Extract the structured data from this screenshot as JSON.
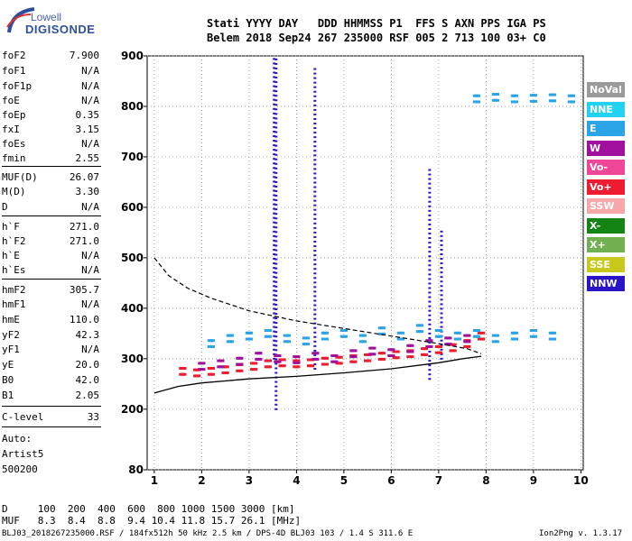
{
  "logo": {
    "top": "Lowell",
    "main": "DIGISONDE"
  },
  "header": {
    "line1": "Stati YYYY DAY   DDD HHMMSS P1  FFS S AXN PPS IGA PS",
    "line2": "Belem 2018 Sep24 267 235000 RSF 005 2 713 100 03+ C0"
  },
  "params": [
    {
      "name": "foF2",
      "value": "7.900"
    },
    {
      "name": "foF1",
      "value": "N/A"
    },
    {
      "name": "foF1p",
      "value": "N/A"
    },
    {
      "name": "foE",
      "value": "N/A"
    },
    {
      "name": "foEp",
      "value": "0.35"
    },
    {
      "name": "fxI",
      "value": "3.15"
    },
    {
      "name": "foEs",
      "value": "N/A"
    },
    {
      "name": "fmin",
      "value": "2.55"
    },
    {
      "name": "MUF(D)",
      "value": "26.07"
    },
    {
      "name": "M(D)",
      "value": "3.30"
    },
    {
      "name": "D",
      "value": "N/A"
    },
    {
      "name": "h`F",
      "value": "271.0"
    },
    {
      "name": "h`F2",
      "value": "271.0"
    },
    {
      "name": "h`E",
      "value": "N/A"
    },
    {
      "name": "h`Es",
      "value": "N/A"
    },
    {
      "name": "hmF2",
      "value": "305.7"
    },
    {
      "name": "hmF1",
      "value": "N/A"
    },
    {
      "name": "hmE",
      "value": "110.0"
    },
    {
      "name": "yF2",
      "value": "42.3"
    },
    {
      "name": "yF1",
      "value": "N/A"
    },
    {
      "name": "yE",
      "value": "20.0"
    },
    {
      "name": "B0",
      "value": "42.0"
    },
    {
      "name": "B1",
      "value": "2.05"
    },
    {
      "name": "C-level",
      "value": "33"
    }
  ],
  "auto": {
    "label": "Auto:",
    "name": "Artist5",
    "version": "500200"
  },
  "legend": [
    {
      "label": "NoVal",
      "color": "#9a9a9a"
    },
    {
      "label": "NNE",
      "color": "#22d2f0"
    },
    {
      "label": "E",
      "color": "#2aa4e6"
    },
    {
      "label": "W",
      "color": "#a0109c"
    },
    {
      "label": "Vo-",
      "color": "#f0469a"
    },
    {
      "label": "Vo+",
      "color": "#ee1c30"
    },
    {
      "label": "SSW",
      "color": "#f6a8a8"
    },
    {
      "label": "X-",
      "color": "#148414"
    },
    {
      "label": "X+",
      "color": "#70b050"
    },
    {
      "label": "SSE",
      "color": "#c8c81c"
    },
    {
      "label": "NNW",
      "color": "#2a14c8"
    }
  ],
  "muf_table": {
    "d_line": "D     100  200  400  600  800 1000 1500 3000 [km]",
    "muf_line": "MUF   8.3  8.4  8.8  9.4 10.4 11.8 15.7 26.1 [MHz]"
  },
  "footer": {
    "left": "BLJ03_2018267235000.RSF / 184fx512h 50 kHz 2.5 km / DPS-4D BLJ03 103 / 1.4 S 311.6 E",
    "right": "Ion2Png v. 1.3.17"
  },
  "chart_data": {
    "type": "scatter",
    "title": "",
    "xlabel": "",
    "ylabel": "",
    "xlim": [
      0.85,
      10.05
    ],
    "ylim": [
      80,
      900
    ],
    "xticks": [
      1,
      2,
      3,
      4,
      5,
      6,
      7,
      8,
      9,
      10
    ],
    "yticks": [
      80,
      200,
      300,
      400,
      500,
      600,
      700,
      800,
      900
    ],
    "grid": true,
    "ionogram_traces": [
      {
        "name": "F2 O-trace (Vo+)",
        "color": "#ee1c30",
        "x": [
          1.6,
          1.9,
          2.2,
          2.5,
          2.8,
          3.1,
          3.4,
          3.7,
          4.0,
          4.3,
          4.6,
          4.9,
          5.2,
          5.5,
          5.8,
          6.1,
          6.4,
          6.7,
          7.0,
          7.3,
          7.6,
          7.9
        ],
        "y": [
          275,
          272,
          275,
          278,
          282,
          285,
          290,
          292,
          290,
          292,
          295,
          297,
          300,
          302,
          305,
          308,
          310,
          314,
          318,
          322,
          330,
          345
        ]
      },
      {
        "name": "F2 W",
        "color": "#a0109c",
        "x": [
          2.0,
          2.4,
          2.8,
          3.2,
          3.6,
          4.0,
          4.4,
          4.8,
          5.2,
          5.6,
          6.0,
          6.4,
          6.8,
          7.2,
          7.6
        ],
        "y": [
          285,
          290,
          295,
          305,
          300,
          298,
          305,
          300,
          310,
          315,
          312,
          320,
          330,
          335,
          340
        ]
      },
      {
        "name": "F2 E",
        "color": "#2aa4e6",
        "x": [
          2.2,
          2.6,
          3.0,
          3.4,
          3.8,
          4.2,
          4.6,
          5.0,
          5.4,
          5.8,
          6.2,
          6.6,
          7.0,
          7.4,
          7.8,
          8.2,
          8.6,
          9.0,
          9.4
        ],
        "y": [
          330,
          340,
          345,
          350,
          340,
          335,
          345,
          350,
          340,
          355,
          345,
          360,
          350,
          345,
          350,
          340,
          345,
          350,
          345
        ]
      },
      {
        "name": "upper E",
        "color": "#2aa4e6",
        "x": [
          7.8,
          8.2,
          8.6,
          9.0,
          9.4,
          9.8
        ],
        "y": [
          815,
          818,
          815,
          816,
          817,
          815
        ]
      }
    ],
    "profile_curve": {
      "x": [
        1.0,
        1.5,
        2.0,
        3.0,
        4.0,
        5.0,
        6.0,
        7.0,
        7.5,
        7.9
      ],
      "y": [
        232,
        245,
        252,
        260,
        265,
        272,
        280,
        292,
        300,
        305
      ]
    },
    "muf_curve": {
      "x": [
        1.0,
        1.3,
        1.7,
        2.2,
        3.0,
        4.0,
        5.0,
        6.0,
        7.0,
        7.6,
        7.9
      ],
      "y": [
        500,
        465,
        440,
        420,
        395,
        375,
        360,
        345,
        330,
        320,
        310
      ]
    }
  }
}
